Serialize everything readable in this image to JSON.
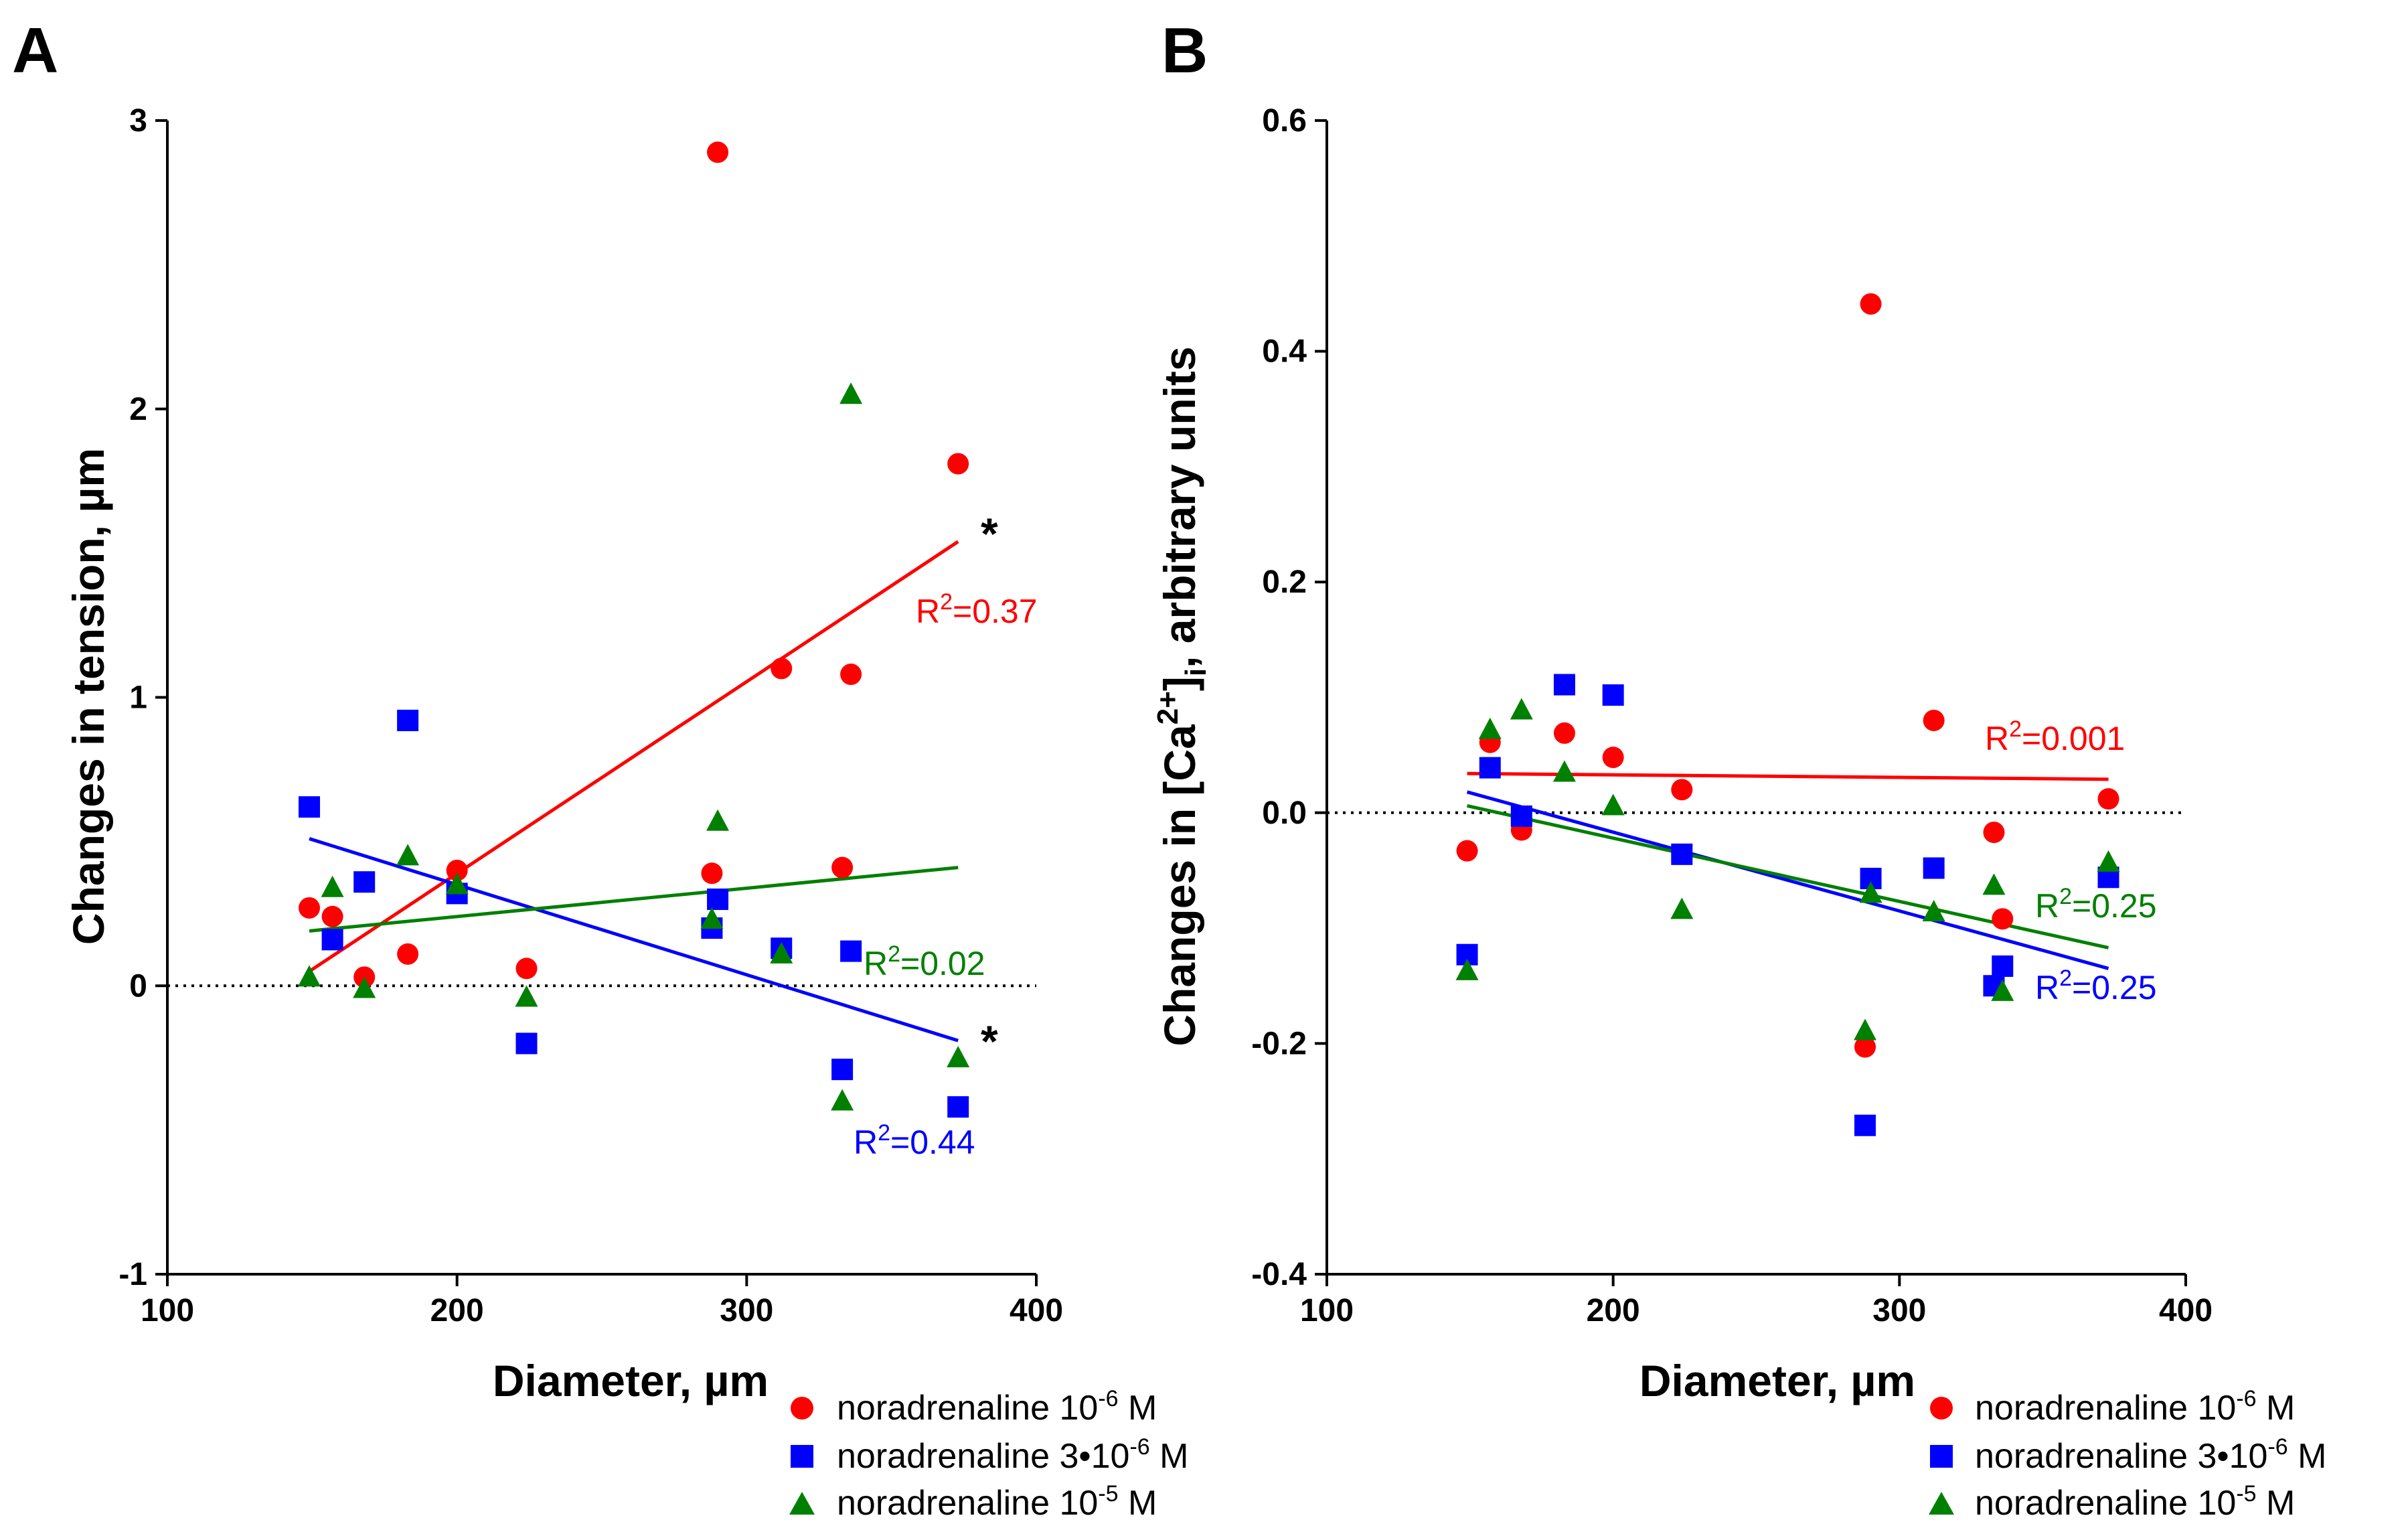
{
  "chart_data": [
    {
      "panel": "A",
      "type": "scatter",
      "xlabel": "Diameter, µm",
      "ylabel": "Changes in tension, µm",
      "xlim": [
        100,
        400
      ],
      "ylim": [
        -1,
        3
      ],
      "xticks": [
        "100",
        "200",
        "300",
        "400"
      ],
      "yticks": [
        "-1",
        "0",
        "1",
        "2",
        "3"
      ],
      "series": [
        {
          "name": "noradrenaline 10",
          "sup": "-6",
          "unit": " M",
          "color": "#ff0000",
          "marker": "circle",
          "x": [
            149,
            157,
            168,
            183,
            200,
            224,
            288,
            290,
            312,
            333,
            336,
            373
          ],
          "y": [
            0.27,
            0.24,
            0.03,
            0.11,
            0.4,
            0.06,
            0.39,
            2.89,
            1.1,
            0.41,
            1.08,
            1.81
          ]
        },
        {
          "name": "noradrenaline 3•10",
          "sup": "-6",
          "unit": " M",
          "color": "#0000ff",
          "marker": "square",
          "x": [
            149,
            157,
            168,
            183,
            200,
            224,
            288,
            290,
            312,
            333,
            336,
            373
          ],
          "y": [
            0.62,
            0.16,
            0.36,
            0.92,
            0.32,
            -0.2,
            0.2,
            0.3,
            0.13,
            -0.29,
            0.12,
            -0.42
          ]
        },
        {
          "name": "noradrenaline 10",
          "sup": "-5",
          "unit": " M",
          "color": "#008000",
          "marker": "triangle",
          "x": [
            149,
            157,
            168,
            183,
            200,
            224,
            288,
            290,
            312,
            333,
            336,
            373
          ],
          "y": [
            0.03,
            0.34,
            -0.01,
            0.45,
            0.35,
            -0.04,
            0.23,
            0.57,
            0.11,
            -0.4,
            2.05,
            -0.25
          ]
        }
      ],
      "fits": [
        {
          "color": "#ff0000",
          "x": [
            149,
            373
          ],
          "y": [
            0.05,
            1.54
          ],
          "r2_label": "R",
          "r2_value": "=0.37",
          "star": "*"
        },
        {
          "color": "#0000ff",
          "x": [
            149,
            373
          ],
          "y": [
            0.51,
            -0.19
          ],
          "r2_label": "R",
          "r2_value": "=0.44",
          "star": "*"
        },
        {
          "color": "#008000",
          "x": [
            149,
            373
          ],
          "y": [
            0.19,
            0.41
          ],
          "r2_label": "R",
          "r2_value": "=0.02",
          "star": ""
        }
      ]
    },
    {
      "panel": "B",
      "type": "scatter",
      "xlabel": "Diameter, µm",
      "ylabel_main": "Changes in [Ca",
      "ylabel_sup": "2+",
      "ylabel_mid": "]",
      "ylabel_sub": "i",
      "ylabel_end": ", arbitrary units",
      "xlim": [
        100,
        400
      ],
      "ylim": [
        -0.4,
        0.6
      ],
      "xticks": [
        "100",
        "200",
        "300",
        "400"
      ],
      "yticks": [
        "-0.4",
        "-0.2",
        "0.0",
        "0.2",
        "0.4",
        "0.6"
      ],
      "series": [
        {
          "name": "noradrenaline 10",
          "sup": "-6",
          "unit": " M",
          "color": "#ff0000",
          "marker": "circle",
          "x": [
            149,
            157,
            168,
            183,
            200,
            224,
            288,
            290,
            312,
            333,
            336,
            373
          ],
          "y": [
            -0.033,
            0.061,
            -0.015,
            0.069,
            0.048,
            0.02,
            -0.203,
            0.441,
            0.08,
            -0.017,
            -0.092,
            0.012
          ]
        },
        {
          "name": "noradrenaline 3•10",
          "sup": "-6",
          "unit": " M",
          "color": "#0000ff",
          "marker": "square",
          "x": [
            149,
            157,
            168,
            183,
            200,
            224,
            288,
            290,
            312,
            333,
            336,
            373
          ],
          "y": [
            -0.123,
            0.039,
            -0.003,
            0.111,
            0.102,
            -0.036,
            -0.271,
            -0.057,
            -0.048,
            -0.15,
            -0.133,
            -0.056
          ]
        },
        {
          "name": "noradrenaline 10",
          "sup": "-5",
          "unit": " M",
          "color": "#008000",
          "marker": "triangle",
          "x": [
            149,
            157,
            168,
            183,
            200,
            224,
            288,
            290,
            312,
            333,
            336,
            373
          ],
          "y": [
            -0.137,
            0.072,
            0.089,
            0.035,
            0.006,
            -0.084,
            -0.189,
            -0.07,
            -0.086,
            -0.063,
            -0.155,
            -0.043
          ]
        }
      ],
      "fits": [
        {
          "color": "#ff0000",
          "x": [
            149,
            373
          ],
          "y": [
            0.034,
            0.029
          ],
          "r2_label": "R",
          "r2_value": "=0.001",
          "star": ""
        },
        {
          "color": "#0000ff",
          "x": [
            149,
            373
          ],
          "y": [
            0.018,
            -0.135
          ],
          "r2_label": "R",
          "r2_value": "=0.25",
          "star": ""
        },
        {
          "color": "#008000",
          "x": [
            149,
            373
          ],
          "y": [
            0.006,
            -0.117
          ],
          "r2_label": "R",
          "r2_value": "=0.25",
          "star": ""
        }
      ]
    }
  ]
}
